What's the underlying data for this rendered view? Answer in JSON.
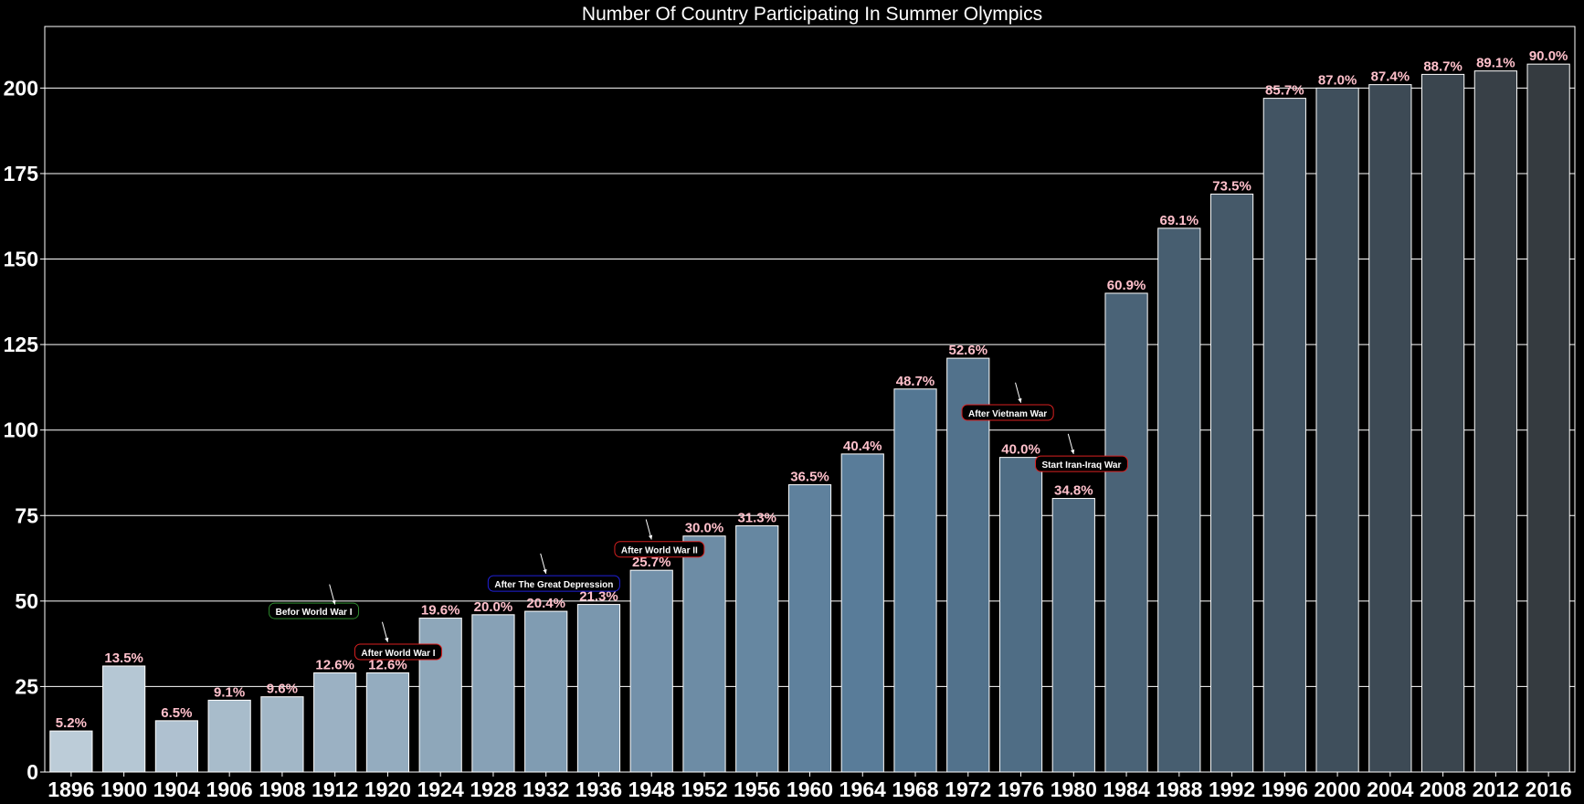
{
  "chart_data": {
    "type": "bar",
    "title": "Number Of Country Participating In Summer Olympics",
    "xlabel": "",
    "ylabel": "",
    "ylim": [
      0,
      218
    ],
    "yticks": [
      0,
      25,
      50,
      75,
      100,
      125,
      150,
      175,
      200
    ],
    "grid": "horizontal",
    "categories": [
      "1896",
      "1900",
      "1904",
      "1906",
      "1908",
      "1912",
      "1920",
      "1924",
      "1928",
      "1932",
      "1936",
      "1948",
      "1952",
      "1956",
      "1960",
      "1964",
      "1968",
      "1972",
      "1976",
      "1980",
      "1984",
      "1988",
      "1992",
      "1996",
      "2000",
      "2004",
      "2008",
      "2012",
      "2016"
    ],
    "values": [
      12,
      31,
      15,
      21,
      22,
      29,
      29,
      45,
      46,
      47,
      49,
      59,
      69,
      72,
      84,
      93,
      112,
      121,
      92,
      80,
      140,
      159,
      169,
      197,
      200,
      201,
      204,
      205,
      207
    ],
    "data_labels": [
      "5.2%",
      "13.5%",
      "6.5%",
      "9.1%",
      "9.6%",
      "12.6%",
      "12.6%",
      "19.6%",
      "20.0%",
      "20.4%",
      "21.3%",
      "25.7%",
      "30.0%",
      "31.3%",
      "36.5%",
      "40.4%",
      "48.7%",
      "52.6%",
      "40.0%",
      "34.8%",
      "60.9%",
      "69.1%",
      "73.5%",
      "85.7%",
      "87.0%",
      "87.4%",
      "88.7%",
      "89.1%",
      "90.0%"
    ],
    "bar_colors": {
      "start": "#bcccd8",
      "mid": "#567a97",
      "end": "#353b40"
    },
    "annotations": [
      {
        "text": "Befor World War I",
        "category": "1912",
        "point_y": 49,
        "text_y": 47,
        "text_cat_offset": -0.4,
        "border": "#2e8b2e"
      },
      {
        "text": "After World War I",
        "category": "1920",
        "point_y": 38,
        "text_y": 35,
        "text_cat_offset": 0.2,
        "border": "#d82020"
      },
      {
        "text": "After The Great Depression",
        "category": "1932",
        "point_y": 58,
        "text_y": 55,
        "text_cat_offset": 0.15,
        "border": "#2020d8"
      },
      {
        "text": "After World War II",
        "category": "1948",
        "point_y": 68,
        "text_y": 65,
        "text_cat_offset": 0.15,
        "border": "#d82020"
      },
      {
        "text": "After Vietnam War",
        "category": "1976",
        "point_y": 108,
        "text_y": 105,
        "text_cat_offset": -0.25,
        "border": "#d82020"
      },
      {
        "text": "Start Iran-Iraq War",
        "category": "1980",
        "point_y": 93,
        "text_y": 90,
        "text_cat_offset": 0.15,
        "border": "#d82020"
      }
    ]
  }
}
